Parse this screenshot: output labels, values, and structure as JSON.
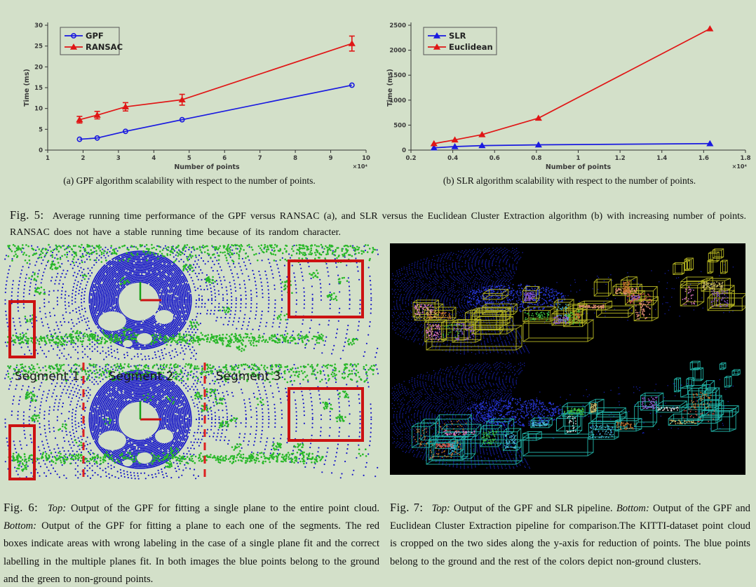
{
  "page": {
    "background": "#d3e0c9"
  },
  "fig5": {
    "label": "Fig. 5:",
    "caption": "Average running time performance of the GPF versus RANSAC (a), and SLR versus the Euclidean Cluster Extraction algorithm (b) with increasing number of points. RANSAC does not have a stable running time because of its random character.",
    "caption_a": "(a) GPF algorithm scalability with respect to the number of points.",
    "caption_b": "(b) SLR algorithm scalability with respect to the number of points."
  },
  "chart_data": [
    {
      "type": "line",
      "title": "",
      "xlabel": "Number of points",
      "ylabel": "Time (ms)",
      "x_scale_label": "×10⁴",
      "xlim": [
        1,
        10
      ],
      "ylim": [
        0,
        30
      ],
      "xticks": [
        1,
        2,
        3,
        4,
        5,
        6,
        7,
        8,
        9,
        10
      ],
      "xtick_labels": [
        "1",
        "2",
        "3",
        "4",
        "5",
        "6",
        "7",
        "8",
        "9",
        "10"
      ],
      "yticks": [
        0,
        5,
        10,
        15,
        20,
        25,
        30
      ],
      "ytick_labels": [
        "0",
        "5",
        "10",
        "15",
        "20",
        "25",
        "30"
      ],
      "grid": false,
      "legend_position": "top-left",
      "series": [
        {
          "name": "GPF",
          "color": "#1a1ae0",
          "marker": "circle",
          "x": [
            1.9,
            2.4,
            3.2,
            4.8,
            9.6
          ],
          "y": [
            2.6,
            2.9,
            4.5,
            7.3,
            15.6
          ]
        },
        {
          "name": "RANSAC",
          "color": "#e01616",
          "marker": "triangle",
          "x": [
            1.9,
            2.4,
            3.2,
            4.8,
            9.6
          ],
          "y": [
            7.3,
            8.4,
            10.4,
            12.1,
            25.6
          ],
          "yerr": [
            0.8,
            0.9,
            1.0,
            1.3,
            1.8
          ]
        }
      ]
    },
    {
      "type": "line",
      "title": "",
      "xlabel": "Number of points",
      "ylabel": "Time (ms)",
      "x_scale_label": "×10⁴",
      "xlim": [
        0.2,
        1.8
      ],
      "ylim": [
        0,
        2500
      ],
      "xticks": [
        0.2,
        0.4,
        0.6,
        0.8,
        1,
        1.2,
        1.4,
        1.6,
        1.8
      ],
      "xtick_labels": [
        "0.2",
        "0.4",
        "0.6",
        "0.8",
        "1",
        "1.2",
        "1.4",
        "1.6",
        "1.8"
      ],
      "yticks": [
        0,
        500,
        1000,
        1500,
        2000,
        2500
      ],
      "ytick_labels": [
        "0",
        "500",
        "1000",
        "1500",
        "2000",
        "2500"
      ],
      "grid": false,
      "legend_position": "top-left",
      "series": [
        {
          "name": "SLR",
          "color": "#1a1ae0",
          "marker": "triangle",
          "x": [
            0.31,
            0.41,
            0.54,
            0.81,
            1.63
          ],
          "y": [
            45,
            70,
            90,
            105,
            130
          ]
        },
        {
          "name": "Euclidean",
          "color": "#e01616",
          "marker": "triangle",
          "x": [
            0.31,
            0.41,
            0.54,
            0.81,
            1.63
          ],
          "y": [
            130,
            205,
            310,
            640,
            2430
          ]
        }
      ]
    }
  ],
  "fig6": {
    "label": "Fig. 6:",
    "top_label": "Top:",
    "top_text": "Output of the GPF for fitting a single plane to the entire point cloud.",
    "bottom_label": "Bottom:",
    "bottom_text": "Output of the GPF for fitting a plane to each one of the segments. The red boxes indicate areas with wrong labeling in the case of a single plane fit and the correct labelling in the multiple planes fit. In both images the blue points belong to the ground and the green to non-ground points.",
    "segments": [
      "Segment 1",
      "Segment 2",
      "Segment 3"
    ],
    "colors": {
      "ground_points": "#1717c8",
      "non_ground_points": "#28b828",
      "highlight_box": "#cc1212",
      "segment_divider": "#dd2020",
      "origin_x_axis": "#cc1212",
      "origin_y_axis": "#18a018"
    }
  },
  "fig7": {
    "label": "Fig. 7:",
    "top_label": "Top:",
    "top_text": "Output of the GPF and SLR pipeline.",
    "bottom_label": "Bottom:",
    "bottom_text": "Output of the GPF and Euclidean Cluster Extraction pipeline for comparison.The KITTI-dataset point cloud is cropped on the two sides along the y-axis for reduction of points. The blue points belong to the ground and the rest of the colors depict non-ground clusters.",
    "colors": {
      "background": "#000000",
      "ground_points": "#1620b0",
      "ground_bright": "#2a3ae0",
      "top_boxes": "#b8b822",
      "bottom_boxes": "#22b8ac",
      "cluster_palette": [
        "#e87ec8",
        "#3ec43e",
        "#c87430",
        "#e2e2e2",
        "#9058d0",
        "#ccba6a",
        "#d0524a",
        "#e89078",
        "#48b8d8"
      ]
    }
  }
}
